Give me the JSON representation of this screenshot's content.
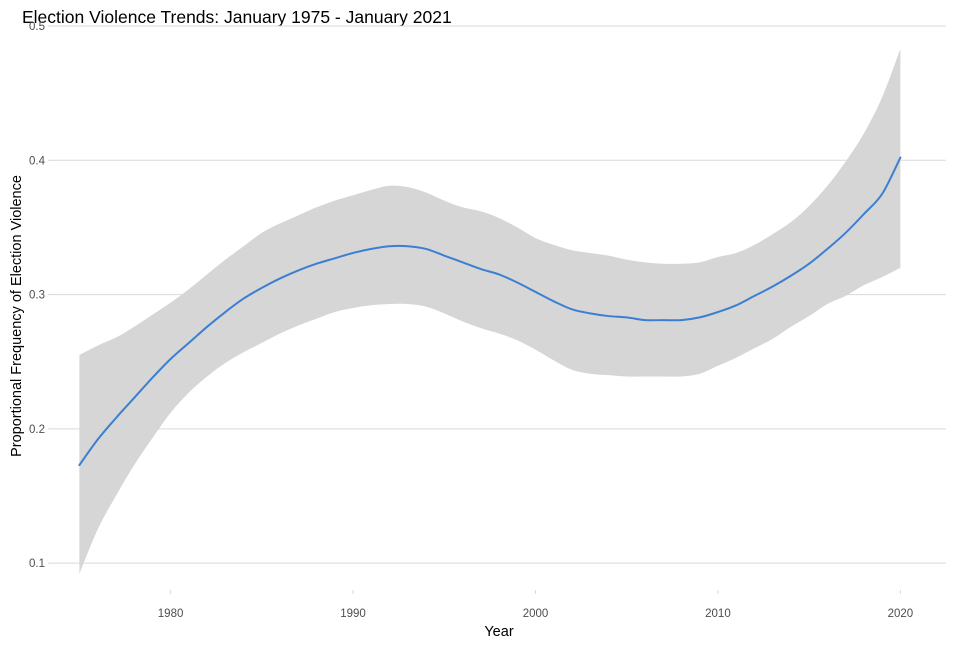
{
  "chart_data": {
    "type": "line",
    "title": "Election Violence Trends: January 1975 - January 2021",
    "xlabel": "Year",
    "ylabel": "Proportional Frequency of Election Violence",
    "xlim": [
      1973.5,
      2022.5
    ],
    "ylim": [
      0.08,
      0.5
    ],
    "x_ticks": [
      1980,
      1990,
      2000,
      2010,
      2020
    ],
    "y_ticks": [
      0.1,
      0.2,
      0.3,
      0.4,
      0.5
    ],
    "grid": true,
    "colors": {
      "line": "#3a7fd2",
      "ribbon": "#d6d6d6",
      "grid": "#d9d9d9"
    },
    "series": [
      {
        "x": [
          1975,
          1976,
          1977,
          1978,
          1979,
          1980,
          1981,
          1982,
          1983,
          1984,
          1985,
          1986,
          1987,
          1988,
          1989,
          1990,
          1991,
          1992,
          1993,
          1994,
          1995,
          1996,
          1997,
          1998,
          1999,
          2000,
          2001,
          2002,
          2003,
          2004,
          2005,
          2006,
          2007,
          2008,
          2009,
          2010,
          2011,
          2012,
          2013,
          2014,
          2015,
          2016,
          2017,
          2018,
          2019,
          2020
        ],
        "y": [
          0.173,
          0.192,
          0.208,
          0.223,
          0.238,
          0.252,
          0.264,
          0.276,
          0.287,
          0.297,
          0.305,
          0.312,
          0.318,
          0.323,
          0.327,
          0.331,
          0.334,
          0.336,
          0.336,
          0.334,
          0.329,
          0.324,
          0.319,
          0.315,
          0.309,
          0.302,
          0.295,
          0.289,
          0.286,
          0.284,
          0.283,
          0.281,
          0.281,
          0.281,
          0.283,
          0.287,
          0.292,
          0.299,
          0.306,
          0.314,
          0.323,
          0.334,
          0.346,
          0.36,
          0.375,
          0.402
        ],
        "lower": [
          0.092,
          0.125,
          0.15,
          0.173,
          0.193,
          0.212,
          0.227,
          0.239,
          0.249,
          0.257,
          0.264,
          0.271,
          0.277,
          0.282,
          0.287,
          0.29,
          0.292,
          0.293,
          0.293,
          0.291,
          0.286,
          0.28,
          0.275,
          0.271,
          0.266,
          0.259,
          0.251,
          0.244,
          0.241,
          0.24,
          0.239,
          0.239,
          0.239,
          0.239,
          0.241,
          0.247,
          0.253,
          0.26,
          0.267,
          0.276,
          0.284,
          0.293,
          0.299,
          0.307,
          0.313,
          0.32
        ],
        "upper": [
          0.255,
          0.262,
          0.268,
          0.276,
          0.285,
          0.294,
          0.304,
          0.315,
          0.326,
          0.336,
          0.346,
          0.353,
          0.359,
          0.365,
          0.37,
          0.374,
          0.378,
          0.381,
          0.38,
          0.376,
          0.37,
          0.365,
          0.362,
          0.357,
          0.35,
          0.342,
          0.337,
          0.333,
          0.331,
          0.329,
          0.326,
          0.324,
          0.323,
          0.323,
          0.324,
          0.328,
          0.331,
          0.337,
          0.345,
          0.354,
          0.366,
          0.381,
          0.399,
          0.42,
          0.447,
          0.483
        ]
      }
    ]
  }
}
